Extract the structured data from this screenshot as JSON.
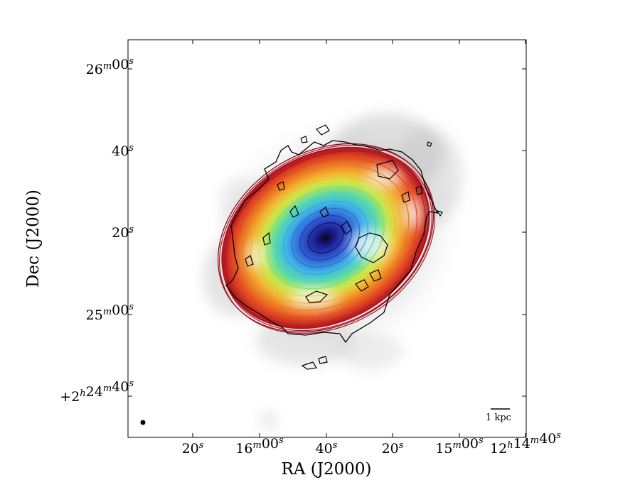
{
  "chart_data": {
    "type": "image",
    "xlabel": "RA (J2000)",
    "ylabel": "Dec (J2000)",
    "x_ticks": [
      {
        "value": "12h16m20s",
        "label": "20",
        "sup": "s"
      },
      {
        "value": "12h16m00s",
        "label": "16",
        "sup": "m",
        "label2": "00",
        "sup2": "s"
      },
      {
        "value": "12h15m40s",
        "label": "40",
        "sup": "s"
      },
      {
        "value": "12h15m20s",
        "label": "20",
        "sup": "s"
      },
      {
        "value": "12h15m00s",
        "label": "15",
        "sup": "m",
        "label2": "00",
        "sup2": "s"
      },
      {
        "value": "12h14m40s",
        "label": "12",
        "sup": "h",
        "label2": "14",
        "sup2": "m",
        "label3": "40",
        "sup3": "s"
      }
    ],
    "y_ticks": [
      {
        "value": "+2h26m00s",
        "label": "26",
        "sup": "m",
        "label2": "00",
        "sup2": "s"
      },
      {
        "value": "+2h25m40s",
        "label": "40",
        "sup": "s"
      },
      {
        "value": "+2h25m20s",
        "label": "20",
        "sup": "s"
      },
      {
        "value": "+2h25m00s",
        "label": "25",
        "sup": "m",
        "label2": "00",
        "sup2": "s"
      },
      {
        "value": "+2h24m40s",
        "label": "+2",
        "sup": "h",
        "label2": "24",
        "sup2": "m",
        "label3": "40",
        "sup3": "s"
      }
    ],
    "scale_bar": {
      "label": "1 kpc"
    },
    "model_ellipse_colors": [
      "#1a0f6e",
      "#2a3aa8",
      "#2f6fd0",
      "#35a7e0",
      "#49d3c8",
      "#7fe07a",
      "#d7e84a",
      "#f3b233",
      "#ee7a22",
      "#e24a22",
      "#c41e2a",
      "#8e0f1f"
    ],
    "grid": false
  }
}
